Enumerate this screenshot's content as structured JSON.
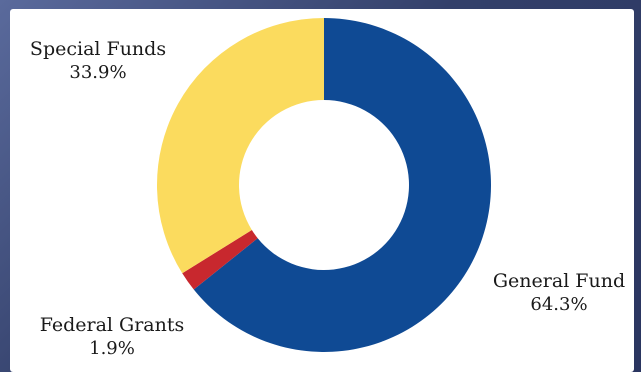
{
  "chart_data": {
    "type": "pie",
    "style": "donut",
    "title": "",
    "slices": [
      {
        "label": "General Fund",
        "value": 64.3,
        "value_label": "64.3%",
        "color": "#0f4a94"
      },
      {
        "label": "Federal Grants",
        "value": 1.9,
        "value_label": "1.9%",
        "color": "#c8282e"
      },
      {
        "label": "Special Funds",
        "value": 33.9,
        "value_label": "33.9%",
        "color": "#fbdb5e"
      }
    ],
    "start_angle_deg": 0,
    "direction": "clockwise",
    "legend": "none",
    "labels_placement": "outside"
  }
}
